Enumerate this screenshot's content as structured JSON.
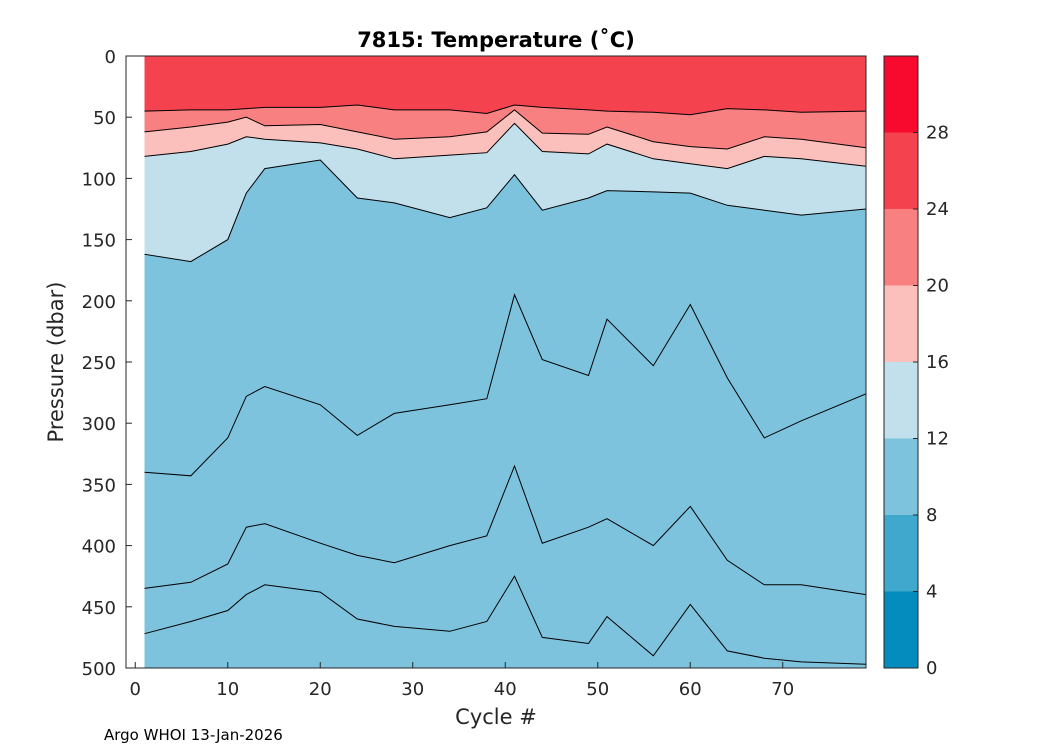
{
  "chart_data": {
    "type": "heatmap",
    "title": "7815:  Temperature (˚C)",
    "xlabel": "Cycle #",
    "ylabel": "Pressure (dbar)",
    "xlim": [
      -1,
      79
    ],
    "ylim": [
      500,
      0
    ],
    "x_ticks": [
      "0",
      "10",
      "20",
      "30",
      "40",
      "50",
      "60",
      "70"
    ],
    "x_tick_values": [
      0,
      10,
      20,
      30,
      40,
      50,
      60,
      70
    ],
    "y_ticks": [
      "0",
      "50",
      "100",
      "150",
      "200",
      "250",
      "300",
      "350",
      "400",
      "450",
      "500"
    ],
    "y_tick_values": [
      0,
      50,
      100,
      150,
      200,
      250,
      300,
      350,
      400,
      450,
      500
    ],
    "colorbar": {
      "levels": [
        0,
        4,
        8,
        12,
        16,
        20,
        24,
        28,
        32
      ],
      "tick_labels": [
        "0",
        "4",
        "8",
        "12",
        "16",
        "20",
        "24",
        "28"
      ],
      "tick_values": [
        0,
        4,
        8,
        12,
        16,
        20,
        24,
        28
      ],
      "colors": [
        "#058cbf",
        "#40a8cc",
        "#7dc3dd",
        "#c1e0ec",
        "#fbbfbc",
        "#f88080",
        "#f5424f",
        "#f70a2e"
      ]
    },
    "contours": {
      "cycles": [
        1,
        6,
        10,
        12,
        14,
        20,
        24,
        28,
        34,
        38,
        41,
        44,
        49,
        51,
        56,
        60,
        64,
        68,
        72,
        79
      ],
      "c24": [
        45,
        44,
        44,
        43,
        42,
        42,
        40,
        44,
        44,
        47,
        40,
        42,
        44,
        45,
        46,
        48,
        43,
        44,
        46,
        45
      ],
      "c20": [
        62,
        58,
        54,
        50,
        57,
        56,
        62,
        68,
        66,
        62,
        44,
        63,
        64,
        58,
        70,
        74,
        76,
        66,
        68,
        75
      ],
      "c16": [
        82,
        78,
        72,
        66,
        68,
        71,
        76,
        84,
        81,
        79,
        55,
        78,
        80,
        72,
        84,
        88,
        92,
        82,
        84,
        90
      ],
      "c12": [
        162,
        168,
        150,
        112,
        92,
        85,
        116,
        120,
        132,
        124,
        97,
        126,
        116,
        110,
        111,
        112,
        122,
        126,
        130,
        125
      ],
      "c8": [
        340,
        343,
        312,
        278,
        270,
        285,
        310,
        292,
        285,
        280,
        195,
        248,
        261,
        215,
        253,
        203,
        263,
        312,
        298,
        276
      ],
      "c4": [
        435,
        430,
        415,
        385,
        382,
        398,
        408,
        414,
        400,
        392,
        335,
        398,
        385,
        378,
        400,
        368,
        412,
        432,
        432,
        440
      ],
      "c4b": [
        472,
        462,
        453,
        440,
        432,
        438,
        460,
        466,
        470,
        462,
        425,
        475,
        480,
        458,
        490,
        448,
        486,
        492,
        495,
        497
      ]
    }
  },
  "footer": "Argo WHOI 13-Jan-2026"
}
